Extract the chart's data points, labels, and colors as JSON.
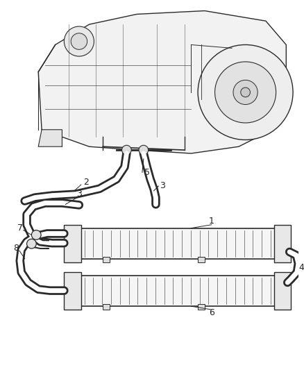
{
  "background_color": "#ffffff",
  "line_color": "#2a2a2a",
  "label_color": "#222222",
  "figsize": [
    4.38,
    5.33
  ],
  "dpi": 100
}
